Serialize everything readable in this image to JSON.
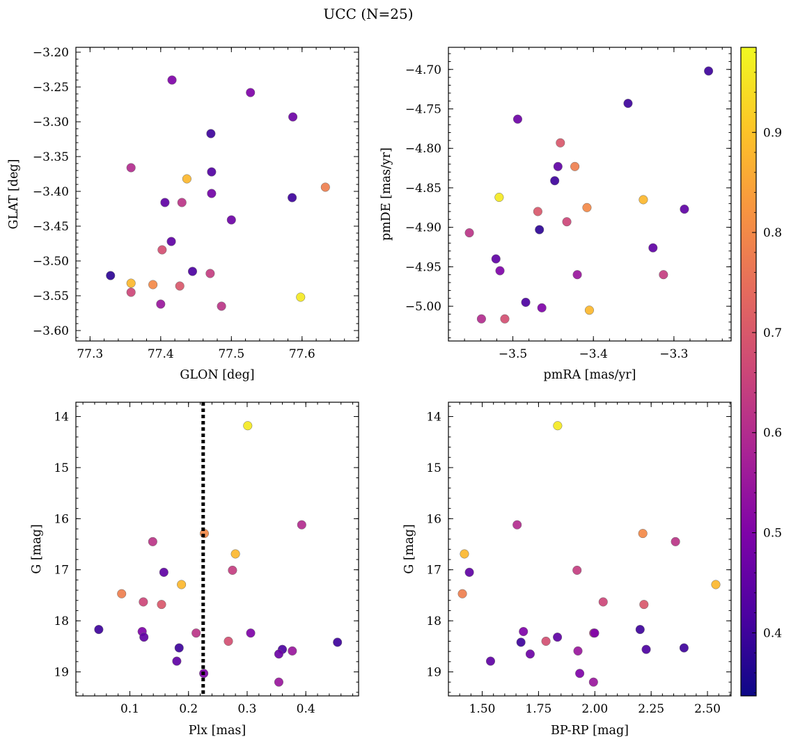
{
  "title": "UCC (N=25)",
  "colorbar": {
    "range": [
      0.337,
      0.985
    ],
    "ticks": [
      0.4,
      0.5,
      0.6,
      0.7,
      0.8,
      0.9
    ],
    "tick_labels": [
      "0.4",
      "0.5",
      "0.6",
      "0.7",
      "0.8",
      "0.9"
    ]
  },
  "chart_data": [
    {
      "type": "scatter",
      "xlabel": "GLON [deg]",
      "ylabel": "GLAT [deg]",
      "xlim": [
        77.28,
        77.68
      ],
      "ylim": [
        -3.615,
        -3.193
      ],
      "xticks": [
        77.3,
        77.4,
        77.5,
        77.6
      ],
      "xtick_labels": [
        "77.3",
        "77.4",
        "77.5",
        "77.6"
      ],
      "yticks": [
        -3.6,
        -3.55,
        -3.5,
        -3.45,
        -3.4,
        -3.35,
        -3.3,
        -3.25,
        -3.2
      ],
      "ytick_labels": [
        "−3.60",
        "−3.55",
        "−3.50",
        "−3.45",
        "−3.40",
        "−3.35",
        "−3.30",
        "−3.25",
        "−3.20"
      ],
      "points": [
        {
          "x": 77.416,
          "y": -3.24,
          "c": 0.5
        },
        {
          "x": 77.527,
          "y": -3.258,
          "c": 0.5
        },
        {
          "x": 77.587,
          "y": -3.293,
          "c": 0.47
        },
        {
          "x": 77.471,
          "y": -3.317,
          "c": 0.4
        },
        {
          "x": 77.358,
          "y": -3.366,
          "c": 0.6
        },
        {
          "x": 77.472,
          "y": -3.372,
          "c": 0.43
        },
        {
          "x": 77.437,
          "y": -3.382,
          "c": 0.88
        },
        {
          "x": 77.633,
          "y": -3.394,
          "c": 0.78
        },
        {
          "x": 77.472,
          "y": -3.403,
          "c": 0.48
        },
        {
          "x": 77.586,
          "y": -3.409,
          "c": 0.4
        },
        {
          "x": 77.406,
          "y": -3.416,
          "c": 0.45
        },
        {
          "x": 77.43,
          "y": -3.416,
          "c": 0.62
        },
        {
          "x": 77.5,
          "y": -3.441,
          "c": 0.47
        },
        {
          "x": 77.415,
          "y": -3.472,
          "c": 0.45
        },
        {
          "x": 77.402,
          "y": -3.484,
          "c": 0.68
        },
        {
          "x": 77.445,
          "y": -3.515,
          "c": 0.42
        },
        {
          "x": 77.47,
          "y": -3.518,
          "c": 0.64
        },
        {
          "x": 77.329,
          "y": -3.521,
          "c": 0.38
        },
        {
          "x": 77.358,
          "y": -3.532,
          "c": 0.88
        },
        {
          "x": 77.389,
          "y": -3.534,
          "c": 0.8
        },
        {
          "x": 77.427,
          "y": -3.536,
          "c": 0.7
        },
        {
          "x": 77.358,
          "y": -3.545,
          "c": 0.66
        },
        {
          "x": 77.598,
          "y": -3.552,
          "c": 0.96
        },
        {
          "x": 77.4,
          "y": -3.562,
          "c": 0.55
        },
        {
          "x": 77.486,
          "y": -3.565,
          "c": 0.62
        }
      ]
    },
    {
      "type": "scatter",
      "xlabel": "pmRA [mas/yr]",
      "ylabel": "pmDE [mas/yr]",
      "xlim": [
        -3.58,
        -3.229
      ],
      "ylim": [
        -5.044,
        -4.672
      ],
      "xticks": [
        -3.5,
        -3.4,
        -3.3
      ],
      "xtick_labels": [
        "−3.5",
        "−3.4",
        "−3.3"
      ],
      "yticks": [
        -5.0,
        -4.95,
        -4.9,
        -4.85,
        -4.8,
        -4.75,
        -4.7
      ],
      "ytick_labels": [
        "−5.00",
        "−4.95",
        "−4.90",
        "−4.85",
        "−4.80",
        "−4.75",
        "−4.70"
      ],
      "points": [
        {
          "x": -3.257,
          "y": -4.702,
          "c": 0.4
        },
        {
          "x": -3.357,
          "y": -4.743,
          "c": 0.4
        },
        {
          "x": -3.494,
          "y": -4.763,
          "c": 0.47
        },
        {
          "x": -3.441,
          "y": -4.793,
          "c": 0.7
        },
        {
          "x": -3.444,
          "y": -4.823,
          "c": 0.45
        },
        {
          "x": -3.423,
          "y": -4.823,
          "c": 0.78
        },
        {
          "x": -3.448,
          "y": -4.841,
          "c": 0.4
        },
        {
          "x": -3.517,
          "y": -4.862,
          "c": 0.96
        },
        {
          "x": -3.338,
          "y": -4.865,
          "c": 0.88
        },
        {
          "x": -3.408,
          "y": -4.875,
          "c": 0.8
        },
        {
          "x": -3.287,
          "y": -4.877,
          "c": 0.45
        },
        {
          "x": -3.469,
          "y": -4.88,
          "c": 0.7
        },
        {
          "x": -3.467,
          "y": -4.903,
          "c": 0.38
        },
        {
          "x": -3.433,
          "y": -4.893,
          "c": 0.66
        },
        {
          "x": -3.554,
          "y": -4.907,
          "c": 0.62
        },
        {
          "x": -3.326,
          "y": -4.926,
          "c": 0.45
        },
        {
          "x": -3.521,
          "y": -4.94,
          "c": 0.45
        },
        {
          "x": -3.516,
          "y": -4.955,
          "c": 0.5
        },
        {
          "x": -3.42,
          "y": -4.96,
          "c": 0.55
        },
        {
          "x": -3.313,
          "y": -4.96,
          "c": 0.64
        },
        {
          "x": -3.484,
          "y": -4.995,
          "c": 0.42
        },
        {
          "x": -3.464,
          "y": -5.002,
          "c": 0.5
        },
        {
          "x": -3.405,
          "y": -5.005,
          "c": 0.88
        },
        {
          "x": -3.539,
          "y": -5.016,
          "c": 0.6
        },
        {
          "x": -3.51,
          "y": -5.016,
          "c": 0.68
        }
      ]
    },
    {
      "type": "scatter",
      "xlabel": "Plx [mas]",
      "ylabel": "G [mag]",
      "xlim": [
        0.008,
        0.49
      ],
      "ylim": [
        19.47,
        13.72
      ],
      "y_inverted": true,
      "vline_x": 0.225,
      "xticks": [
        0.1,
        0.2,
        0.3,
        0.4
      ],
      "xtick_labels": [
        "0.1",
        "0.2",
        "0.3",
        "0.4"
      ],
      "yticks": [
        14,
        15,
        16,
        17,
        18,
        19
      ],
      "ytick_labels": [
        "14",
        "15",
        "16",
        "17",
        "18",
        "19"
      ],
      "points": [
        {
          "x": 0.301,
          "y": 14.18,
          "c": 0.96
        },
        {
          "x": 0.393,
          "y": 16.12,
          "c": 0.6
        },
        {
          "x": 0.227,
          "y": 16.29,
          "c": 0.8
        },
        {
          "x": 0.139,
          "y": 16.45,
          "c": 0.62
        },
        {
          "x": 0.28,
          "y": 16.69,
          "c": 0.88
        },
        {
          "x": 0.275,
          "y": 17.01,
          "c": 0.64
        },
        {
          "x": 0.158,
          "y": 17.05,
          "c": 0.45
        },
        {
          "x": 0.188,
          "y": 17.29,
          "c": 0.88
        },
        {
          "x": 0.086,
          "y": 17.47,
          "c": 0.78
        },
        {
          "x": 0.123,
          "y": 17.63,
          "c": 0.66
        },
        {
          "x": 0.154,
          "y": 17.68,
          "c": 0.7
        },
        {
          "x": 0.047,
          "y": 18.17,
          "c": 0.4
        },
        {
          "x": 0.121,
          "y": 18.21,
          "c": 0.5
        },
        {
          "x": 0.213,
          "y": 18.24,
          "c": 0.62
        },
        {
          "x": 0.306,
          "y": 18.24,
          "c": 0.5
        },
        {
          "x": 0.124,
          "y": 18.32,
          "c": 0.45
        },
        {
          "x": 0.454,
          "y": 18.42,
          "c": 0.4
        },
        {
          "x": 0.268,
          "y": 18.4,
          "c": 0.68
        },
        {
          "x": 0.184,
          "y": 18.53,
          "c": 0.4
        },
        {
          "x": 0.36,
          "y": 18.56,
          "c": 0.42
        },
        {
          "x": 0.377,
          "y": 18.59,
          "c": 0.55
        },
        {
          "x": 0.354,
          "y": 18.65,
          "c": 0.47
        },
        {
          "x": 0.18,
          "y": 18.79,
          "c": 0.45
        },
        {
          "x": 0.226,
          "y": 19.03,
          "c": 0.5
        },
        {
          "x": 0.354,
          "y": 19.2,
          "c": 0.55
        }
      ]
    },
    {
      "type": "scatter",
      "xlabel": "BP-RP [mag]",
      "ylabel": "G [mag]",
      "xlim": [
        1.35,
        2.605
      ],
      "ylim": [
        19.47,
        13.72
      ],
      "y_inverted": true,
      "xticks": [
        1.5,
        1.75,
        2.0,
        2.25,
        2.5
      ],
      "xtick_labels": [
        "1.50",
        "1.75",
        "2.00",
        "2.25",
        "2.50"
      ],
      "yticks": [
        14,
        15,
        16,
        17,
        18,
        19
      ],
      "ytick_labels": [
        "14",
        "15",
        "16",
        "17",
        "18",
        "19"
      ],
      "points": [
        {
          "x": 1.835,
          "y": 14.18,
          "c": 0.96
        },
        {
          "x": 1.655,
          "y": 16.12,
          "c": 0.6
        },
        {
          "x": 2.213,
          "y": 16.29,
          "c": 0.8
        },
        {
          "x": 2.358,
          "y": 16.45,
          "c": 0.62
        },
        {
          "x": 1.421,
          "y": 16.69,
          "c": 0.88
        },
        {
          "x": 1.921,
          "y": 17.01,
          "c": 0.64
        },
        {
          "x": 1.443,
          "y": 17.05,
          "c": 0.45
        },
        {
          "x": 2.537,
          "y": 17.29,
          "c": 0.88
        },
        {
          "x": 1.412,
          "y": 17.47,
          "c": 0.78
        },
        {
          "x": 2.037,
          "y": 17.63,
          "c": 0.66
        },
        {
          "x": 2.218,
          "y": 17.68,
          "c": 0.7
        },
        {
          "x": 2.201,
          "y": 18.17,
          "c": 0.4
        },
        {
          "x": 1.683,
          "y": 18.21,
          "c": 0.5
        },
        {
          "x": 1.995,
          "y": 18.24,
          "c": 0.62
        },
        {
          "x": 1.999,
          "y": 18.24,
          "c": 0.5
        },
        {
          "x": 1.834,
          "y": 18.32,
          "c": 0.45
        },
        {
          "x": 1.672,
          "y": 18.42,
          "c": 0.4
        },
        {
          "x": 1.783,
          "y": 18.4,
          "c": 0.68
        },
        {
          "x": 2.396,
          "y": 18.53,
          "c": 0.4
        },
        {
          "x": 2.228,
          "y": 18.56,
          "c": 0.42
        },
        {
          "x": 1.925,
          "y": 18.59,
          "c": 0.55
        },
        {
          "x": 1.713,
          "y": 18.65,
          "c": 0.47
        },
        {
          "x": 1.537,
          "y": 18.79,
          "c": 0.45
        },
        {
          "x": 1.933,
          "y": 19.03,
          "c": 0.5
        },
        {
          "x": 1.994,
          "y": 19.2,
          "c": 0.55
        }
      ]
    }
  ]
}
